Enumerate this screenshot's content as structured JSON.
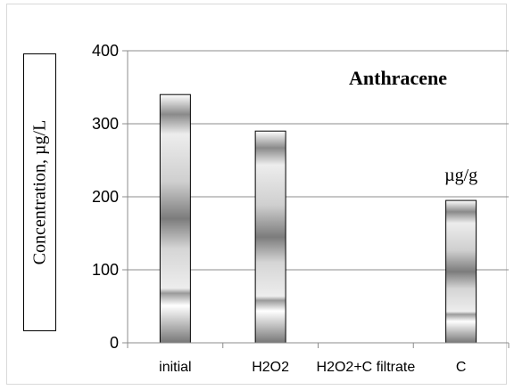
{
  "chart_data": {
    "type": "bar",
    "title": "Anthracene",
    "ylabel": "Concentration, µg/L",
    "xlabel": "",
    "categories": [
      "initial",
      "H2O2",
      "H2O2+C filtrate",
      "C"
    ],
    "values": [
      340,
      290,
      0,
      195
    ],
    "ylim": [
      0,
      400
    ],
    "yticks": [
      0,
      100,
      200,
      300,
      400
    ],
    "grid": true,
    "annotations": [
      {
        "text": "µg/g",
        "category": "C"
      }
    ]
  }
}
